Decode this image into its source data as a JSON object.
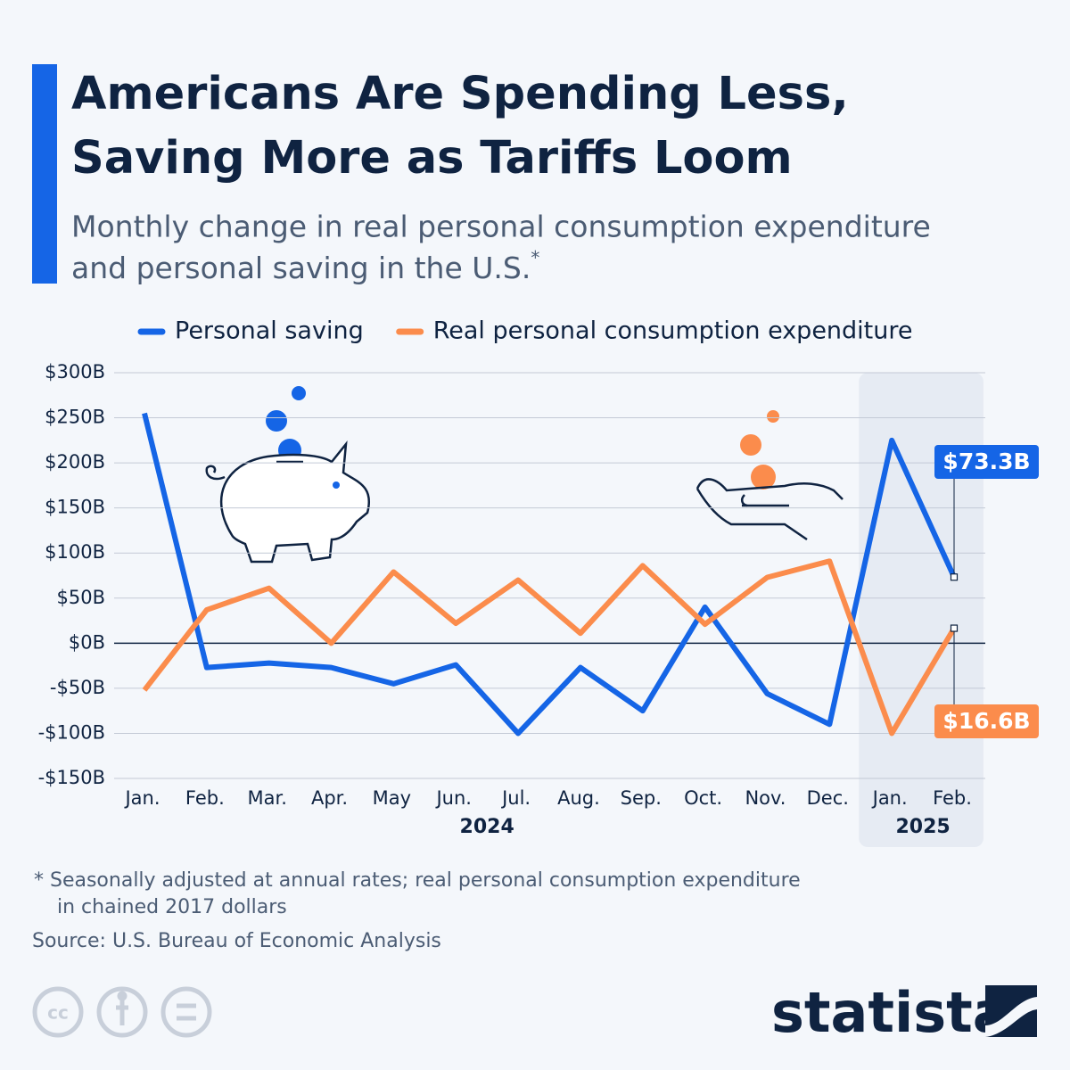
{
  "chart_data": {
    "type": "line",
    "title": [
      "Americans Are Spending Less,",
      "Saving More as Tariffs Loom"
    ],
    "subtitle": [
      "Monthly change in real personal consumption expenditure",
      "and personal saving in the U.S."
    ],
    "subtitle_marker": "*",
    "categories": [
      "Jan.",
      "Feb.",
      "Mar.",
      "Apr.",
      "May",
      "Jun.",
      "Jul.",
      "Aug.",
      "Sep.",
      "Oct.",
      "Nov.",
      "Dec.",
      "Jan.",
      "Feb."
    ],
    "x_groups": [
      {
        "label": "2024",
        "count": 12
      },
      {
        "label": "2025",
        "count": 2
      }
    ],
    "series": [
      {
        "name": "Personal saving",
        "color": "#1565e6",
        "values": [
          255,
          -27,
          -22,
          -27,
          -45,
          -24,
          -100,
          -27,
          -75,
          40,
          -56,
          -90,
          225,
          73.3
        ],
        "value_labels": [
          null,
          null,
          null,
          null,
          null,
          null,
          null,
          null,
          null,
          null,
          null,
          null,
          null,
          "$73.3B"
        ]
      },
      {
        "name": "Real personal consumption expenditure",
        "color": "#fb8c4c",
        "values": [
          -52,
          37,
          61,
          0,
          79,
          22,
          70,
          11,
          86,
          21,
          73,
          91,
          -100,
          16.6
        ],
        "value_labels": [
          null,
          null,
          null,
          null,
          null,
          null,
          null,
          null,
          null,
          null,
          null,
          null,
          null,
          "$16.6B"
        ]
      }
    ],
    "ylim": [
      -150,
      300
    ],
    "yticks": [
      {
        "value": -150,
        "label": "-$150B"
      },
      {
        "value": -100,
        "label": "-$100B"
      },
      {
        "value": -50,
        "label": "-$50B"
      },
      {
        "value": 0,
        "label": "$0B"
      },
      {
        "value": 50,
        "label": "$50B"
      },
      {
        "value": 100,
        "label": "$100B"
      },
      {
        "value": 150,
        "label": "$150B"
      },
      {
        "value": 200,
        "label": "$200B"
      },
      {
        "value": 250,
        "label": "$250B"
      },
      {
        "value": 300,
        "label": "$300B"
      }
    ],
    "grid": true,
    "legend": "top",
    "footnote": [
      "* Seasonally adjusted at annual rates; real personal consumption expenditure",
      "in chained 2017 dollars"
    ],
    "source": "Source: U.S. Bureau of Economic Analysis",
    "brand": "statista"
  }
}
